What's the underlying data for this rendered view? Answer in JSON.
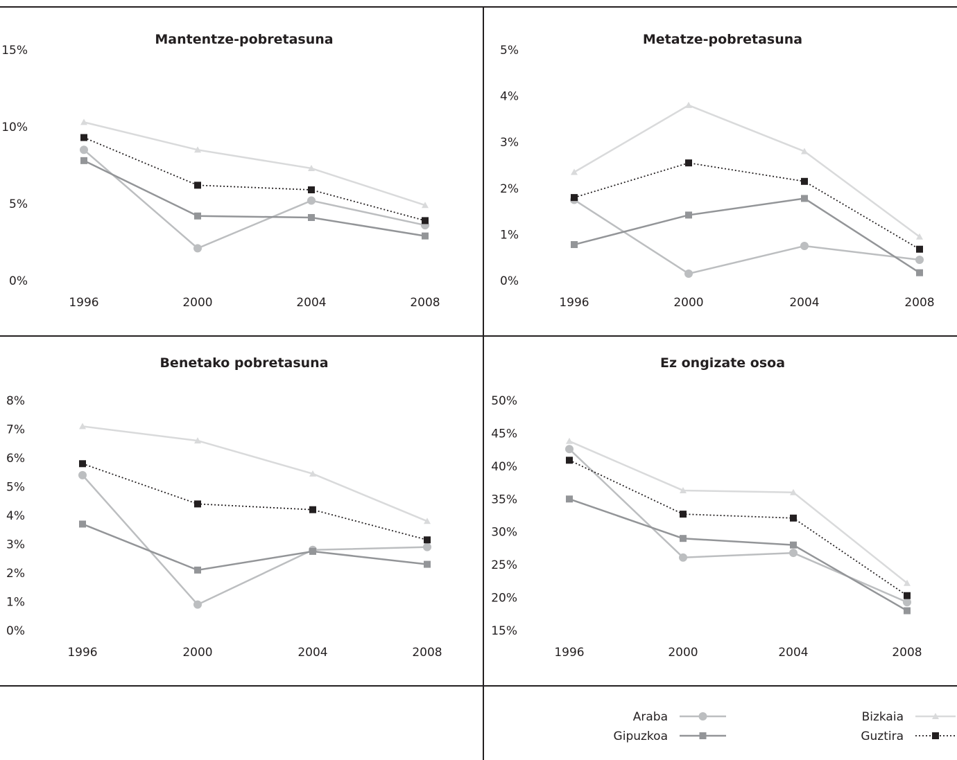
{
  "colors": {
    "araba": "#bcbec0",
    "gipuzkoa": "#939598",
    "bizkaia": "#d9dadb",
    "guztira": "#231f20",
    "rules": "#231f20"
  },
  "legend": {
    "items": [
      {
        "key": "araba",
        "label": "Araba",
        "marker": "circle"
      },
      {
        "key": "gipuzkoa",
        "label": "Gipuzkoa",
        "marker": "square"
      },
      {
        "key": "bizkaia",
        "label": "Bizkaia",
        "marker": "triangle"
      },
      {
        "key": "guztira",
        "label": "Guztira",
        "marker": "square-dotted"
      }
    ]
  },
  "chart_data": [
    {
      "type": "line",
      "title": "Mantentze-pobretasuna",
      "x": [
        "1996",
        "2000",
        "2004",
        "2008"
      ],
      "y_ticks": [
        "0%",
        "5%",
        "10%",
        "15%"
      ],
      "ylim": [
        0,
        15
      ],
      "series": [
        {
          "name": "Bizkaia",
          "key": "bizkaia",
          "values": [
            10.3,
            8.5,
            7.3,
            4.9
          ]
        },
        {
          "name": "Guztira",
          "key": "guztira",
          "values": [
            9.3,
            6.2,
            5.9,
            3.9
          ]
        },
        {
          "name": "Araba",
          "key": "araba",
          "values": [
            8.5,
            2.1,
            5.2,
            3.6
          ]
        },
        {
          "name": "Gipuzkoa",
          "key": "gipuzkoa",
          "values": [
            7.8,
            4.2,
            4.1,
            2.9
          ]
        }
      ]
    },
    {
      "type": "line",
      "title": "Metatze-pobretasuna",
      "x": [
        "1996",
        "2000",
        "2004",
        "2008"
      ],
      "y_ticks": [
        "0%",
        "1%",
        "2%",
        "3%",
        "4%",
        "5%"
      ],
      "ylim": [
        0,
        5
      ],
      "series": [
        {
          "name": "Bizkaia",
          "key": "bizkaia",
          "values": [
            2.35,
            3.8,
            2.8,
            0.95
          ]
        },
        {
          "name": "Guztira",
          "key": "guztira",
          "values": [
            1.8,
            2.55,
            2.15,
            0.68
          ]
        },
        {
          "name": "Araba",
          "key": "araba",
          "values": [
            1.75,
            0.15,
            0.75,
            0.45
          ]
        },
        {
          "name": "Gipuzkoa",
          "key": "gipuzkoa",
          "values": [
            0.78,
            1.42,
            1.78,
            0.17
          ]
        }
      ]
    },
    {
      "type": "line",
      "title": "Benetako pobretasuna",
      "x": [
        "1996",
        "2000",
        "2004",
        "2008"
      ],
      "y_ticks": [
        "0%",
        "1%",
        "2%",
        "3%",
        "4%",
        "5%",
        "6%",
        "7%",
        "8%"
      ],
      "ylim": [
        0,
        8
      ],
      "series": [
        {
          "name": "Bizkaia",
          "key": "bizkaia",
          "values": [
            7.1,
            6.6,
            5.45,
            3.8
          ]
        },
        {
          "name": "Guztira",
          "key": "guztira",
          "values": [
            5.8,
            4.4,
            4.2,
            3.15
          ]
        },
        {
          "name": "Araba",
          "key": "araba",
          "values": [
            5.4,
            0.9,
            2.8,
            2.9
          ]
        },
        {
          "name": "Gipuzkoa",
          "key": "gipuzkoa",
          "values": [
            3.7,
            2.1,
            2.75,
            2.3
          ]
        }
      ]
    },
    {
      "type": "line",
      "title": "Ez ongizate osoa",
      "x": [
        "1996",
        "2000",
        "2004",
        "2008"
      ],
      "y_ticks": [
        "15%",
        "20%",
        "25%",
        "30%",
        "35%",
        "40%",
        "45%",
        "50%"
      ],
      "ylim": [
        15,
        50
      ],
      "series": [
        {
          "name": "Bizkaia",
          "key": "bizkaia",
          "values": [
            43.8,
            36.3,
            36.0,
            22.2
          ]
        },
        {
          "name": "Guztira",
          "key": "guztira",
          "values": [
            40.9,
            32.7,
            32.1,
            20.3
          ]
        },
        {
          "name": "Araba",
          "key": "araba",
          "values": [
            42.6,
            26.1,
            26.8,
            19.3
          ]
        },
        {
          "name": "Gipuzkoa",
          "key": "gipuzkoa",
          "values": [
            35.0,
            29.0,
            28.0,
            18.0
          ]
        }
      ]
    }
  ]
}
